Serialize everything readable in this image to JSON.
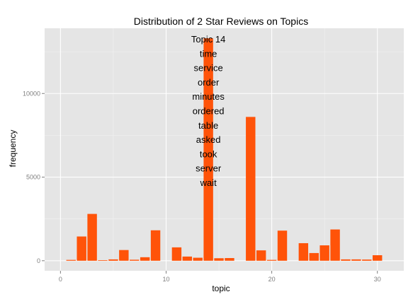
{
  "chart_data": {
    "type": "bar",
    "title": "Distribution of 2 Star Reviews on Topics",
    "xlabel": "topic",
    "ylabel": "frequency",
    "x": [
      1,
      2,
      3,
      4,
      5,
      6,
      7,
      8,
      9,
      10,
      11,
      12,
      13,
      14,
      15,
      16,
      17,
      18,
      19,
      20,
      21,
      22,
      23,
      24,
      25,
      26,
      27,
      28,
      29,
      30
    ],
    "values": [
      50,
      1450,
      2800,
      30,
      80,
      640,
      60,
      210,
      1820,
      0,
      800,
      250,
      180,
      13300,
      150,
      160,
      0,
      8600,
      620,
      50,
      1800,
      0,
      1050,
      460,
      920,
      1870,
      80,
      80,
      70,
      330
    ],
    "xlim": [
      -1.5,
      32.5
    ],
    "ylim": [
      -600,
      13900
    ],
    "xticks": [
      0,
      10,
      20,
      30
    ],
    "yticks": [
      0,
      5000,
      10000
    ],
    "grid": true,
    "legend": "none",
    "bar_color": "#FF5309",
    "panel_color": "#E5E5E5",
    "grid_color": "#FFFFFF",
    "annotation": {
      "x": 14,
      "lines": [
        "Topic 14",
        "time",
        "service",
        "order",
        "minutes",
        "ordered",
        "table",
        "asked",
        "took",
        "server",
        "wait"
      ]
    }
  }
}
